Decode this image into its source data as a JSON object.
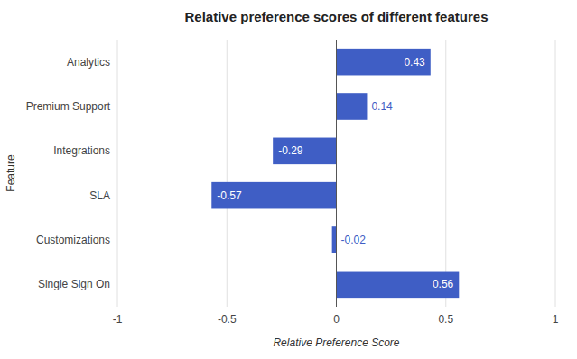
{
  "chart_data": {
    "type": "bar",
    "orientation": "horizontal",
    "title": "Relative preference scores of different features",
    "categories": [
      "Analytics",
      "Premium Support",
      "Integrations",
      "SLA",
      "Customizations",
      "Single Sign On"
    ],
    "values": [
      0.43,
      0.14,
      -0.29,
      -0.57,
      -0.02,
      0.56
    ],
    "color": "#3F5EC5",
    "xlabel": "Relative Preference Score",
    "ylabel": "Feature",
    "xlim": [
      -1,
      1
    ],
    "xticks": [
      -1,
      -0.5,
      0,
      0.5,
      1
    ],
    "grid": true,
    "data_labels": true
  }
}
